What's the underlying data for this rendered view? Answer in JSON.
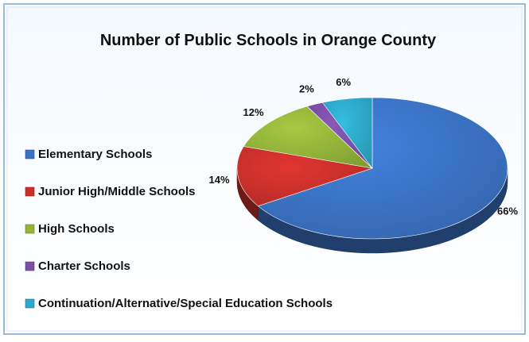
{
  "chart_data": {
    "type": "pie",
    "title": "Number of Public Schools in Orange County",
    "categories": [
      "Elementary Schools",
      "Junior High/Middle Schools",
      "High Schools",
      "Charter Schools",
      "Continuation/Alternative/Special Education Schools"
    ],
    "values": [
      66,
      14,
      12,
      2,
      6
    ],
    "data_labels": [
      "66%",
      "14%",
      "12%",
      "2%",
      "6%"
    ],
    "colors": [
      "#3B73C4",
      "#C9302C",
      "#93B43A",
      "#7A4FA6",
      "#2EA9C9"
    ],
    "legend_placement": "left",
    "style": "3d"
  }
}
